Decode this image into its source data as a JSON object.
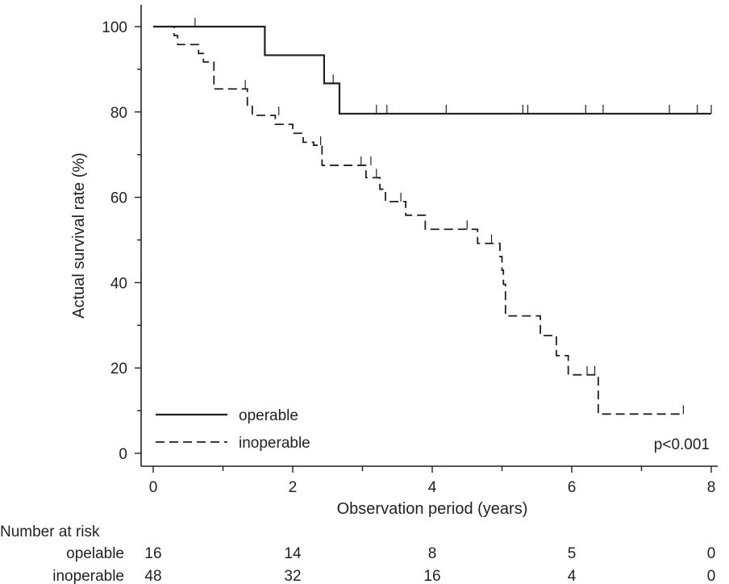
{
  "chart_data": {
    "type": "line",
    "subtype": "kaplan-meier survival",
    "xlabel": "Observation period (years)",
    "ylabel": "Actual survival rate (%)",
    "xlim": [
      0,
      8
    ],
    "ylim": [
      0,
      100
    ],
    "x_ticks": [
      0,
      2,
      4,
      6,
      8
    ],
    "x_minor_ticks": [
      1,
      3,
      5,
      7
    ],
    "y_ticks": [
      0,
      20,
      40,
      60,
      80,
      100
    ],
    "y_minor_ticks": [
      10,
      30,
      50,
      70,
      90
    ],
    "annotation": "p<0.001",
    "series": [
      {
        "name": "operable",
        "style": "solid",
        "steps": [
          [
            0,
            100
          ],
          [
            1.6,
            93.3
          ],
          [
            2.45,
            86.7
          ],
          [
            2.67,
            79.6
          ],
          [
            8,
            79.6
          ]
        ],
        "censored": [
          [
            0.6,
            100
          ],
          [
            2.58,
            86.7
          ],
          [
            3.2,
            79.6
          ],
          [
            3.35,
            79.6
          ],
          [
            4.2,
            79.6
          ],
          [
            5.3,
            79.6
          ],
          [
            5.37,
            79.6
          ],
          [
            6.2,
            79.6
          ],
          [
            6.45,
            79.6
          ],
          [
            7.4,
            79.6
          ],
          [
            7.8,
            79.6
          ],
          [
            8.0,
            79.6
          ]
        ]
      },
      {
        "name": "inoperable",
        "style": "dashed",
        "steps": [
          [
            0,
            100
          ],
          [
            0.3,
            97.9
          ],
          [
            0.35,
            95.8
          ],
          [
            0.65,
            93.7
          ],
          [
            0.72,
            91.7
          ],
          [
            0.87,
            85.4
          ],
          [
            1.35,
            81.3
          ],
          [
            1.42,
            79.2
          ],
          [
            1.75,
            77.1
          ],
          [
            2.0,
            75.0
          ],
          [
            2.15,
            72.9
          ],
          [
            2.3,
            72.2
          ],
          [
            2.42,
            67.5
          ],
          [
            3.05,
            64.6
          ],
          [
            3.25,
            61.9
          ],
          [
            3.33,
            59.0
          ],
          [
            3.62,
            55.8
          ],
          [
            3.9,
            52.5
          ],
          [
            4.65,
            49.2
          ],
          [
            4.97,
            46.1
          ],
          [
            5.0,
            42.9
          ],
          [
            5.02,
            39.6
          ],
          [
            5.05,
            32.2
          ],
          [
            5.55,
            27.6
          ],
          [
            5.78,
            22.9
          ],
          [
            5.95,
            18.4
          ],
          [
            6.38,
            9.2
          ],
          [
            7.6,
            9.2
          ]
        ],
        "censored": [
          [
            1.32,
            85.4
          ],
          [
            1.8,
            79.2
          ],
          [
            2.4,
            72.2
          ],
          [
            2.98,
            67.5
          ],
          [
            3.12,
            67.5
          ],
          [
            3.2,
            64.6
          ],
          [
            3.55,
            59.0
          ],
          [
            4.5,
            52.5
          ],
          [
            4.85,
            49.2
          ],
          [
            6.22,
            18.4
          ],
          [
            6.33,
            18.4
          ],
          [
            7.6,
            9.2
          ]
        ]
      }
    ],
    "risk_table": {
      "title": "Number at risk",
      "times": [
        0,
        2,
        4,
        6,
        8
      ],
      "rows": [
        {
          "label": "opelable",
          "counts": [
            "16",
            "14",
            "8",
            "5",
            "0"
          ]
        },
        {
          "label": "inoperable",
          "counts": [
            "48",
            "32",
            "16",
            "4",
            "0"
          ]
        }
      ]
    }
  }
}
